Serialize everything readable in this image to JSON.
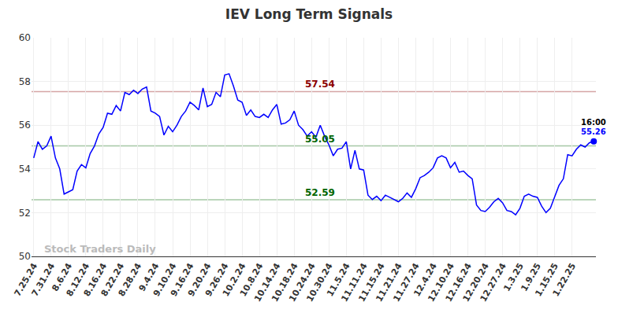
{
  "chart_data": {
    "type": "line",
    "title": "IEV Long Term Signals",
    "categories": [
      "7.25.24",
      null,
      null,
      null,
      "7.31.24",
      null,
      null,
      null,
      "8.6.24",
      null,
      null,
      null,
      "8.12.24",
      null,
      null,
      null,
      "8.16.24",
      null,
      null,
      null,
      "8.22.24",
      null,
      null,
      null,
      "8.28.24",
      null,
      null,
      null,
      "9.4.24",
      null,
      null,
      null,
      "9.10.24",
      null,
      null,
      null,
      "9.16.24",
      null,
      null,
      null,
      "9.20.24",
      null,
      null,
      null,
      "9.26.24",
      null,
      null,
      null,
      "10.2.24",
      null,
      null,
      null,
      "10.8.24",
      null,
      null,
      null,
      "10.14.24",
      null,
      null,
      null,
      "10.18.24",
      null,
      null,
      null,
      "10.24.24",
      null,
      null,
      null,
      "10.30.24",
      null,
      null,
      null,
      "11.5.24",
      null,
      null,
      null,
      "11.11.24",
      null,
      null,
      null,
      "11.15.24",
      null,
      null,
      null,
      "11.21.24",
      null,
      null,
      null,
      "11.27.24",
      null,
      null,
      null,
      "12.4.24",
      null,
      null,
      null,
      "12.10.24",
      null,
      null,
      null,
      "12.16.24",
      null,
      null,
      null,
      "12.20.24",
      null,
      null,
      null,
      "12.27.24",
      null,
      null,
      null,
      "1.3.25",
      null,
      null,
      null,
      "1.9.25",
      null,
      null,
      null,
      "1.15.25",
      null,
      null,
      null,
      "1.22.25",
      null,
      null,
      null,
      null,
      null
    ],
    "values": [
      54.5,
      55.25,
      54.9,
      55.05,
      55.5,
      54.5,
      54.0,
      52.85,
      52.95,
      53.05,
      53.9,
      54.2,
      54.05,
      54.7,
      55.05,
      55.6,
      55.9,
      56.55,
      56.5,
      56.9,
      56.65,
      57.5,
      57.4,
      57.6,
      57.45,
      57.65,
      57.75,
      56.65,
      56.55,
      56.4,
      55.55,
      55.95,
      55.7,
      56.0,
      56.4,
      56.65,
      57.05,
      56.9,
      56.7,
      57.7,
      56.85,
      56.95,
      57.5,
      57.3,
      58.3,
      58.35,
      57.8,
      57.15,
      57.05,
      56.45,
      56.7,
      56.4,
      56.35,
      56.5,
      56.35,
      56.7,
      56.95,
      56.05,
      56.1,
      56.25,
      56.65,
      56.0,
      55.8,
      55.5,
      55.7,
      55.45,
      56.0,
      55.5,
      55.1,
      54.6,
      54.9,
      54.95,
      55.25,
      54.0,
      54.85,
      54.0,
      53.95,
      52.8,
      52.6,
      52.75,
      52.55,
      52.8,
      52.7,
      52.6,
      52.5,
      52.65,
      52.9,
      52.7,
      53.1,
      53.6,
      53.7,
      53.85,
      54.05,
      54.5,
      54.6,
      54.5,
      54.05,
      54.3,
      53.85,
      53.9,
      53.7,
      53.55,
      52.35,
      52.1,
      52.05,
      52.25,
      52.5,
      52.65,
      52.45,
      52.1,
      52.05,
      51.9,
      52.2,
      52.75,
      52.85,
      52.75,
      52.7,
      52.3,
      52.0,
      52.2,
      52.75,
      53.25,
      53.55,
      54.65,
      54.6,
      54.9,
      55.1,
      55.0,
      55.2,
      55.26
    ],
    "color": "#0000ff",
    "levels": [
      {
        "value": 57.54,
        "color": "#8b0000"
      },
      {
        "value": 55.05,
        "color": "#006400"
      },
      {
        "value": 52.59,
        "color": "#006400"
      }
    ],
    "annotations": [
      {
        "text": "Stock Traders Daily"
      },
      {
        "text": "16:00"
      }
    ],
    "ylim": [
      50,
      60
    ],
    "yticks": [
      50,
      52,
      54,
      56,
      58,
      60
    ],
    "grid": true
  }
}
